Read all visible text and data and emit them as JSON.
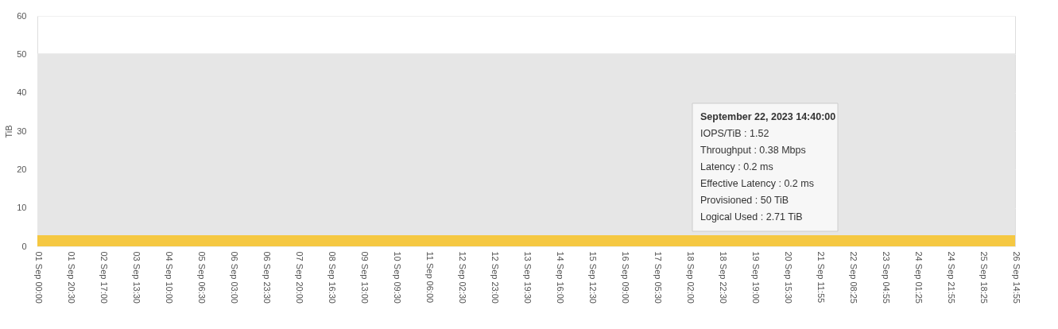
{
  "chart_data": {
    "type": "area",
    "ylabel": "TiB",
    "categories": [
      "01 Sep 00:00",
      "01 Sep 20:30",
      "02 Sep 17:00",
      "03 Sep 13:30",
      "04 Sep 10:00",
      "05 Sep 06:30",
      "06 Sep 03:00",
      "06 Sep 23:30",
      "07 Sep 20:00",
      "08 Sep 16:30",
      "09 Sep 13:00",
      "10 Sep 09:30",
      "11 Sep 06:00",
      "12 Sep 02:30",
      "12 Sep 23:00",
      "13 Sep 19:30",
      "14 Sep 16:00",
      "15 Sep 12:30",
      "16 Sep 09:00",
      "17 Sep 05:30",
      "18 Sep 02:00",
      "18 Sep 22:30",
      "19 Sep 19:00",
      "20 Sep 15:30",
      "21 Sep 11:55",
      "22 Sep 08:25",
      "23 Sep 04:55",
      "24 Sep 01:25",
      "24 Sep 21:55",
      "25 Sep 18:25",
      "26 Sep 14:55"
    ],
    "series": [
      {
        "color": "#e6e6e6",
        "values": [
          50,
          50,
          50,
          50,
          50,
          50,
          50,
          50,
          50,
          50,
          50,
          50,
          50,
          50,
          50,
          50,
          50,
          50,
          50,
          50,
          50,
          50,
          50,
          50,
          50,
          50,
          50,
          50,
          50,
          50,
          50
        ]
      },
      {
        "color": "#f5c842",
        "values": [
          2.7,
          2.7,
          2.7,
          2.7,
          2.7,
          2.7,
          2.7,
          2.7,
          2.7,
          2.7,
          2.7,
          2.7,
          2.7,
          2.7,
          2.7,
          2.7,
          2.7,
          2.7,
          2.7,
          2.7,
          2.7,
          2.7,
          2.7,
          2.7,
          2.7,
          2.7,
          2.7,
          2.7,
          2.7,
          2.7,
          2.7
        ]
      }
    ],
    "ylim": [
      0,
      60
    ],
    "yticks": [
      0,
      10,
      20,
      30,
      40,
      50,
      60
    ],
    "grid": "y",
    "annotations": [
      "September 22, 2023 14:40:00",
      "IOPS/TiB : 1.52",
      "Throughput : 0.38 Mbps",
      "Latency : 0.2 ms",
      "Effective Latency : 0.2 ms",
      "Provisioned : 50 TiB",
      "Logical Used : 2.71 TiB"
    ]
  }
}
